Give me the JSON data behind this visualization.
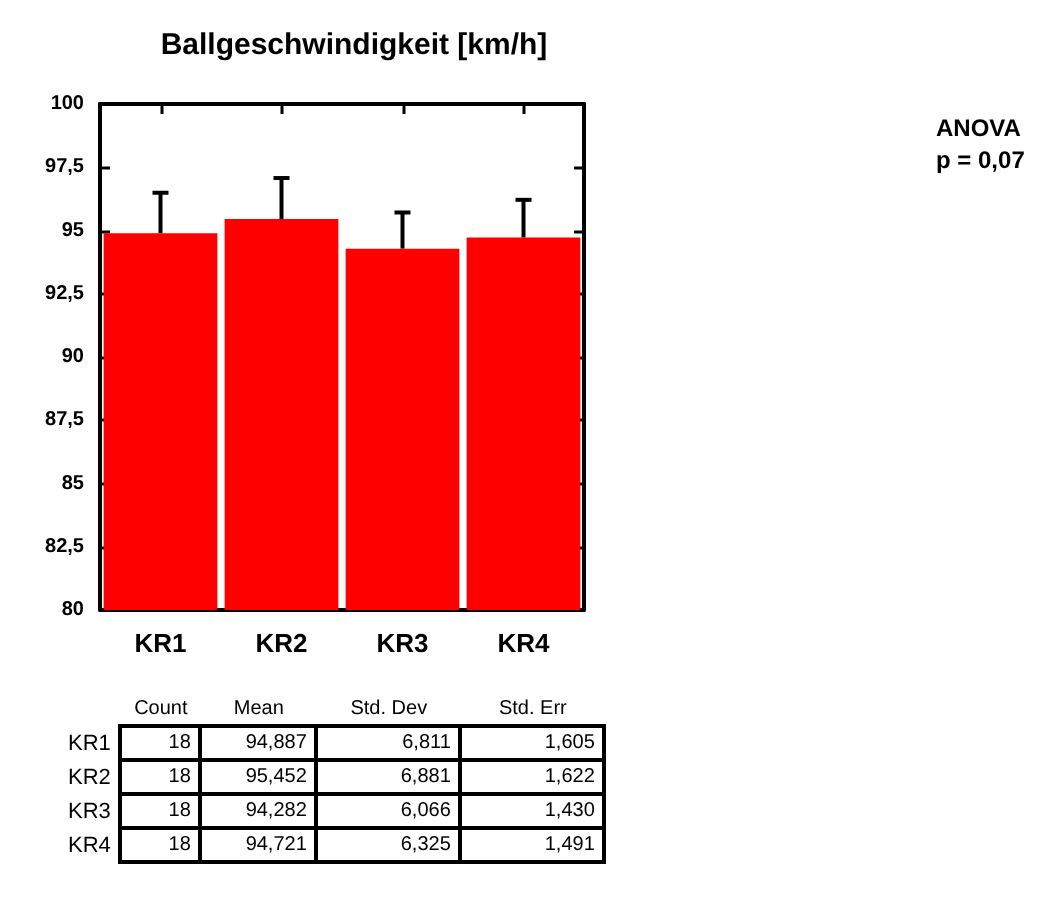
{
  "chart_data": {
    "type": "bar",
    "title": "Ballgeschwindigkeit [km/h]",
    "categories": [
      "KR1",
      "KR2",
      "KR3",
      "KR4"
    ],
    "values": [
      94.887,
      95.452,
      94.282,
      94.721
    ],
    "errors": [
      [
        94.887,
        96.492
      ],
      [
        95.452,
        97.074
      ],
      [
        94.282,
        95.712
      ],
      [
        94.721,
        96.212
      ]
    ],
    "color": "#ff0000",
    "ylim": [
      80,
      100
    ],
    "yticks": [
      {
        "value": 80,
        "label": "80"
      },
      {
        "value": 82.5,
        "label": "82,5"
      },
      {
        "value": 85,
        "label": "85"
      },
      {
        "value": 87.5,
        "label": "87,5"
      },
      {
        "value": 90,
        "label": "90"
      },
      {
        "value": 92.5,
        "label": "92,5"
      },
      {
        "value": 95,
        "label": "95"
      },
      {
        "value": 97.5,
        "label": "97,5"
      },
      {
        "value": 100,
        "label": "100"
      }
    ],
    "grid": false,
    "annotations": [
      "ANOVA",
      "p = 0,07",
      "Count",
      "Mean",
      "Std. Dev",
      "Std. Err",
      "18",
      "94,887",
      "6,811",
      "1,605",
      "18",
      "95,452",
      "6,881",
      "1,622",
      "18",
      "94,282",
      "6,066",
      "1,430",
      "18",
      "94,721",
      "6,325",
      "1,491"
    ]
  }
}
